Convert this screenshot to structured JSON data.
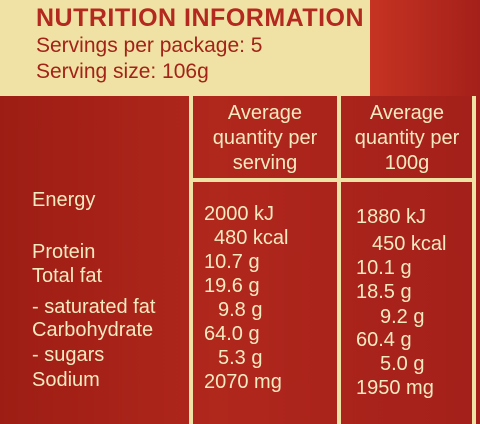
{
  "panel": {
    "title": "NUTRITION INFORMATION",
    "servings_per_package": "Servings per package: 5",
    "serving_size": "Serving size: 106g",
    "columns": {
      "per_serving": [
        "Average",
        "quantity per",
        "serving"
      ],
      "per_100g": [
        "Average",
        "quantity per",
        "100g"
      ]
    },
    "rows": [
      {
        "label": "Energy",
        "serving": "2000 kJ",
        "per100": "1880 kJ"
      },
      {
        "label": "",
        "serving": "480 kcal",
        "per100": "450 kcal"
      },
      {
        "label": "Protein",
        "serving": "10.7 g",
        "per100": "10.1 g"
      },
      {
        "label": "Total fat",
        "serving": "19.6 g",
        "per100": "18.5 g"
      },
      {
        "label": "- saturated fat",
        "serving": "9.8 g",
        "per100": "9.2 g"
      },
      {
        "label": "Carbohydrate",
        "serving": "64.0 g",
        "per100": "60.4 g"
      },
      {
        "label": "- sugars",
        "serving": "5.3 g",
        "per100": "5.0 g"
      },
      {
        "label": "Sodium",
        "serving": "2070 mg",
        "per100": "1950 mg"
      }
    ]
  }
}
